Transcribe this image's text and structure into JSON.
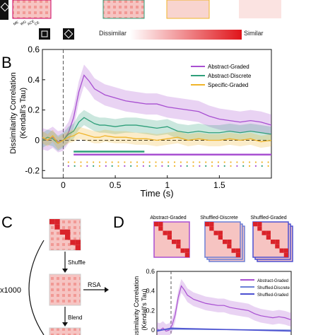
{
  "top_strip": {
    "small_labels": [
      "ME",
      "WG",
      "ACE",
      "CE"
    ],
    "colorbar": {
      "left_label": "Dissimilar",
      "right_label": "Similar",
      "left_color": "#ffffff",
      "right_color": "#e0141a"
    }
  },
  "panel_b": {
    "letter": "B",
    "chart_data": {
      "type": "line",
      "ylabel": "Dissimilarity Correlation\n(Kendall's Tau)",
      "xlabel": "Time (s)",
      "xlim": [
        -0.2,
        2.0
      ],
      "ylim": [
        -0.25,
        0.6
      ],
      "xticks": [
        0,
        0.5,
        1,
        1.5
      ],
      "xtick_labels": [
        "0",
        "0.5",
        "1",
        "1.5"
      ],
      "yticks": [
        -0.2,
        0,
        0.2,
        0.4,
        0.6
      ],
      "ytick_labels": [
        "-0.2",
        "0",
        "0.2",
        "0.4",
        "0.6"
      ],
      "x": [
        -0.2,
        -0.15,
        -0.1,
        -0.05,
        0,
        0.05,
        0.1,
        0.15,
        0.2,
        0.25,
        0.3,
        0.35,
        0.4,
        0.5,
        0.6,
        0.7,
        0.8,
        0.9,
        1.0,
        1.1,
        1.2,
        1.3,
        1.4,
        1.5,
        1.6,
        1.7,
        1.8,
        1.9,
        2.0
      ],
      "series": [
        {
          "name": "Abstract-Graded",
          "color": "#a84fd1",
          "values": [
            0.01,
            0.0,
            0.02,
            -0.01,
            0.0,
            0.05,
            0.15,
            0.32,
            0.43,
            0.39,
            0.34,
            0.32,
            0.3,
            0.28,
            0.26,
            0.25,
            0.24,
            0.24,
            0.22,
            0.21,
            0.2,
            0.19,
            0.16,
            0.14,
            0.13,
            0.12,
            0.13,
            0.12,
            0.1
          ],
          "band": 0.07
        },
        {
          "name": "Abstract-Discrete",
          "color": "#2e9f7a",
          "values": [
            0.0,
            0.02,
            0.01,
            -0.02,
            0.0,
            0.04,
            0.06,
            0.12,
            0.15,
            0.13,
            0.11,
            0.1,
            0.1,
            0.09,
            0.1,
            0.1,
            0.09,
            0.08,
            0.09,
            0.06,
            0.05,
            0.06,
            0.05,
            0.05,
            0.06,
            0.05,
            0.06,
            0.05,
            0.04
          ],
          "band": 0.05
        },
        {
          "name": "Specific-Graded",
          "color": "#f0b429",
          "values": [
            0.02,
            0.0,
            0.03,
            -0.02,
            0.0,
            0.02,
            0.03,
            0.05,
            0.04,
            0.03,
            0.02,
            0.02,
            0.03,
            0.02,
            0.02,
            0.01,
            0.01,
            0.0,
            0.01,
            0.02,
            0.0,
            0.01,
            0.0,
            0.0,
            0.01,
            0.0,
            0.01,
            -0.01,
            0.0
          ],
          "band": 0.04
        }
      ],
      "sig_bars": [
        {
          "color": "#2e9f7a",
          "x": [
            0.1,
            0.78
          ],
          "y": -0.075
        },
        {
          "color": "#a84fd1",
          "x": [
            0.1,
            2.0
          ],
          "y": -0.095
        }
      ],
      "dot_rows": [
        {
          "color": "#f0b429",
          "y": -0.145
        },
        {
          "colors": [
            "#a84fd1",
            "#2e9f7a",
            "#f0b429"
          ],
          "y": -0.17
        }
      ]
    }
  },
  "panel_c": {
    "letter": "C",
    "steps": [
      "Shuffle",
      "Blend"
    ],
    "rsa_label": "RSA",
    "repeat_label": "x1000"
  },
  "panel_d": {
    "letter": "D",
    "matrix_titles": [
      "Abstract-Graded",
      "Shuffled-Discrete",
      "Shuffled-Graded"
    ],
    "chart_data": {
      "type": "line",
      "ylabel": "Dissimilarity Correlation\n(Kendall's Tau)",
      "ylim": [
        -0.05,
        0.6
      ],
      "yticks": [
        0,
        0.2,
        0.4,
        0.6
      ],
      "ytick_labels": [
        "0",
        "0.2",
        "0.4",
        "0.6"
      ],
      "legend": [
        "Abstract-Graded",
        "Shuffled-Discrete",
        "Shuffled-Graded"
      ]
    }
  }
}
